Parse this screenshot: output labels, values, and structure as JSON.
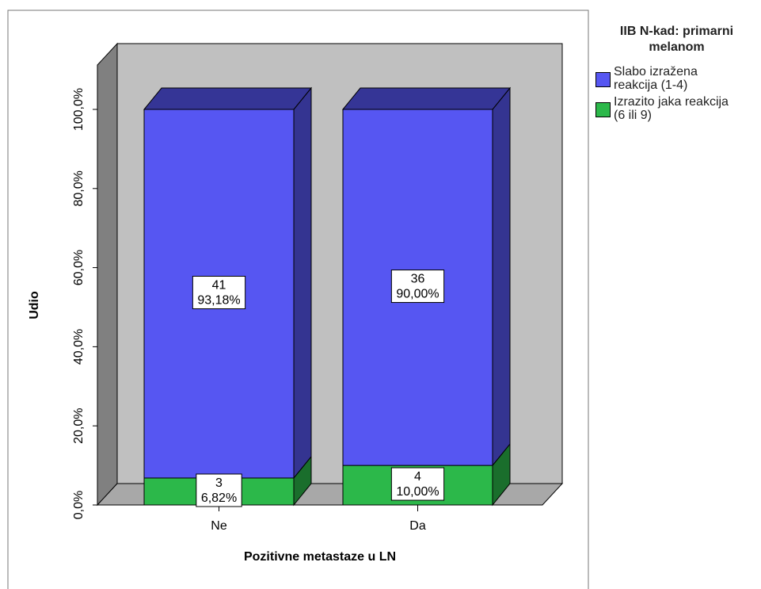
{
  "chart_data": {
    "type": "stacked_bar_3d",
    "y_label": "Udio",
    "x_label": "Pozitivne metastaze u LN",
    "legend_title": "IIB N-kad: primarni melanom",
    "categories": [
      "Ne",
      "Da"
    ],
    "series": [
      {
        "name": "Izrazito jaka reakcija (6 ili 9)",
        "color": "#2cb84a",
        "values": [
          6.82,
          10.0
        ],
        "value_labels": [
          "6,82%",
          "10,00%"
        ],
        "counts": [
          3,
          4
        ]
      },
      {
        "name": "Slabo izražena reakcija (1-4)",
        "color": "#5656f2",
        "values": [
          93.18,
          90.0
        ],
        "value_labels": [
          "93,18%",
          "90,00%"
        ],
        "counts": [
          41,
          36
        ]
      }
    ],
    "legend_order": [
      1,
      0
    ],
    "ylim": [
      0,
      100
    ],
    "yticks": [
      {
        "value": 0,
        "label": "0,0%"
      },
      {
        "value": 20,
        "label": "20,0%"
      },
      {
        "value": 40,
        "label": "40,0%"
      },
      {
        "value": 60,
        "label": "60,0%"
      },
      {
        "value": 80,
        "label": "80,0%"
      },
      {
        "value": 100,
        "label": "100,0%"
      }
    ]
  }
}
